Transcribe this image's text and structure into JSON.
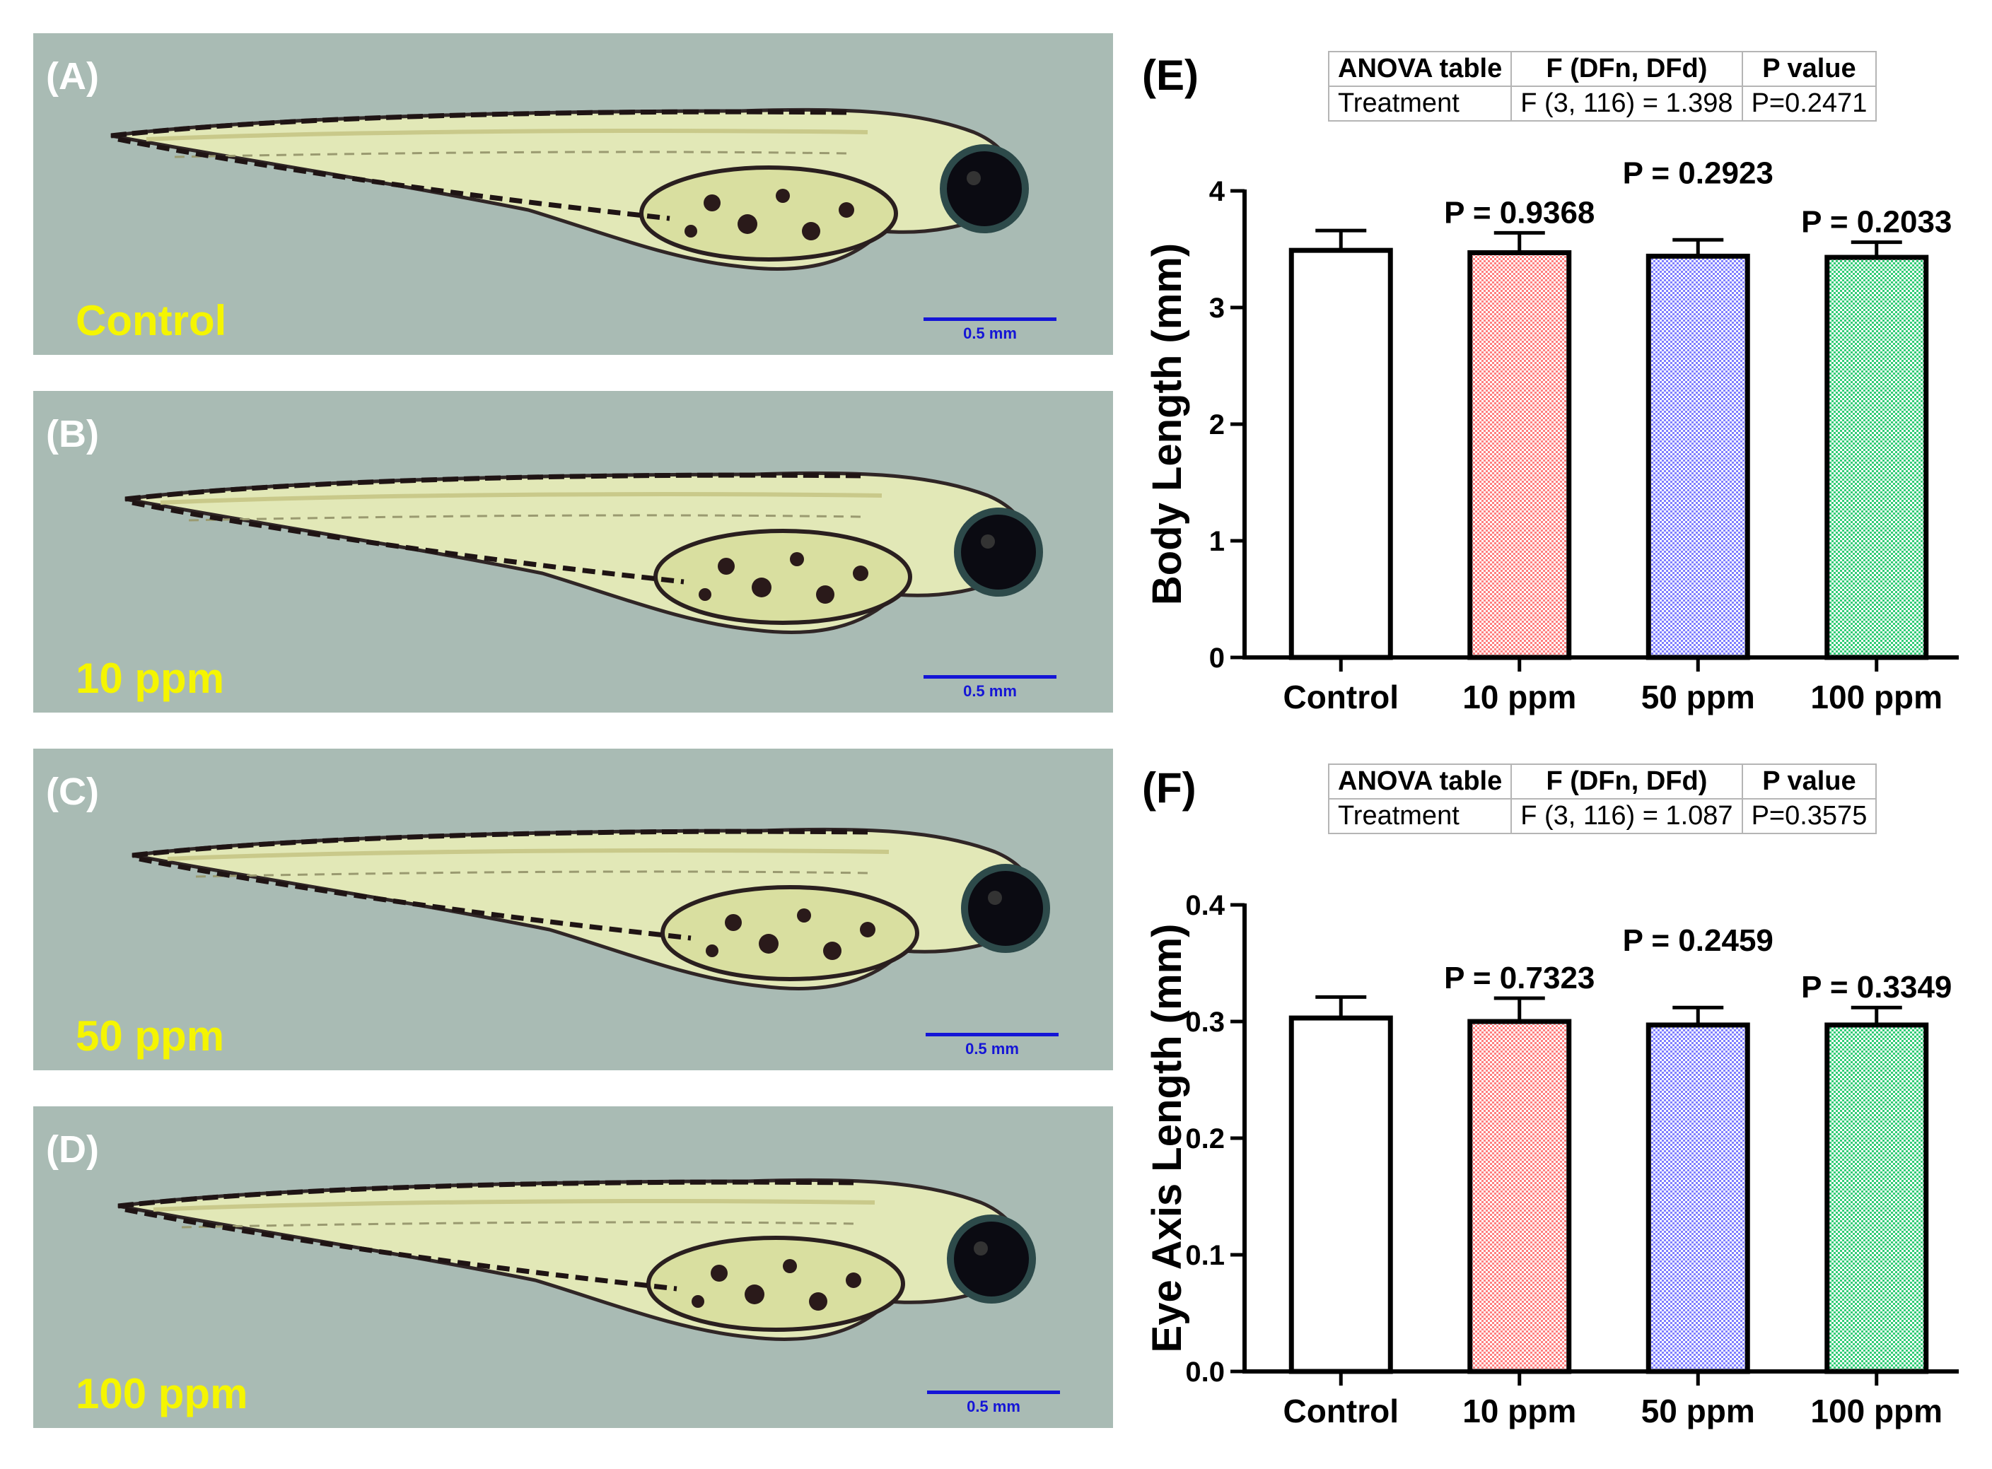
{
  "panels": [
    {
      "letter": "(A)",
      "label": "Control",
      "scale": "0.5 mm"
    },
    {
      "letter": "(B)",
      "label": "10 ppm",
      "scale": "0.5 mm"
    },
    {
      "letter": "(C)",
      "label": "50 ppm",
      "scale": "0.5 mm"
    },
    {
      "letter": "(D)",
      "label": "100 ppm",
      "scale": "0.5 mm"
    }
  ],
  "anova_tables": [
    {
      "headers": [
        "ANOVA table",
        "F (DFn, DFd)",
        "P value"
      ],
      "row": [
        "Treatment",
        "F (3, 116) = 1.398",
        "P=0.2471"
      ]
    },
    {
      "headers": [
        "ANOVA table",
        "F (DFn, DFd)",
        "P value"
      ],
      "row": [
        "Treatment",
        "F (3, 116) = 1.087",
        "P=0.3575"
      ]
    }
  ],
  "chart_data": [
    {
      "panel": "(E)",
      "type": "bar",
      "ylabel": "Body Length (mm)",
      "xlabel": "",
      "categories": [
        "Control",
        "10 ppm",
        "50 ppm",
        "100 ppm"
      ],
      "values": [
        3.49,
        3.47,
        3.44,
        3.43
      ],
      "errors": [
        0.17,
        0.17,
        0.14,
        0.13
      ],
      "pvalues": [
        "",
        "P = 0.9368",
        "P = 0.2923",
        "P = 0.2033"
      ],
      "ylim": [
        0,
        4
      ],
      "yticks": [
        "0",
        "1",
        "2",
        "3",
        "4"
      ],
      "bar_colors": [
        "#ffffff",
        "#ff8080",
        "#8080ff",
        "#33cc77"
      ]
    },
    {
      "panel": "(F)",
      "type": "bar",
      "ylabel": "Eye Axis Length (mm)",
      "xlabel": "",
      "categories": [
        "Control",
        "10 ppm",
        "50 ppm",
        "100 ppm"
      ],
      "values": [
        0.303,
        0.3,
        0.297,
        0.297
      ],
      "errors": [
        0.018,
        0.02,
        0.015,
        0.015
      ],
      "pvalues": [
        "",
        "P = 0.7323",
        "P = 0.2459",
        "P = 0.3349"
      ],
      "ylim": [
        0,
        0.4
      ],
      "yticks": [
        "0.0",
        "0.1",
        "0.2",
        "0.3",
        "0.4"
      ],
      "bar_colors": [
        "#ffffff",
        "#ff8080",
        "#8080ff",
        "#33cc77"
      ]
    }
  ]
}
